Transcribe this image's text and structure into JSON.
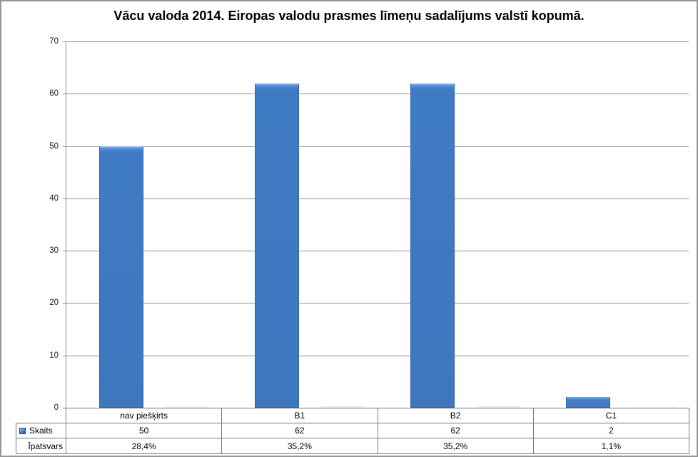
{
  "title": "Vācu valoda 2014. Eiropas valodu prasmes līmeņu sadalījums valstī kopumā.",
  "chart_data": {
    "type": "bar",
    "title": "Vācu valoda 2014. Eiropas valodu prasmes līmeņu sadalījums valstī kopumā.",
    "categories": [
      "nav piešķirts",
      "B1",
      "B2",
      "C1"
    ],
    "series": [
      {
        "name": "Skaits",
        "values": [
          50,
          62,
          62,
          2
        ],
        "color": "#3f7ac4",
        "legend_key": true
      },
      {
        "name": "Īpatsvars",
        "values": [
          0.284,
          0.352,
          0.352,
          0.011
        ],
        "labels": [
          "28,4%",
          "35,2%",
          "35,2%",
          "1,1%"
        ],
        "color": "#eef2f7",
        "legend_key": false
      }
    ],
    "xlabel": "",
    "ylabel": "",
    "ylim": [
      0,
      70
    ],
    "yticks": [
      0,
      10,
      20,
      30,
      40,
      50,
      60,
      70
    ],
    "grid": true,
    "legend_position": "data-table"
  },
  "table": {
    "category_row": [
      "nav piešķirts",
      "B1",
      "B2",
      "C1"
    ],
    "rows": [
      {
        "label": "Skaits",
        "has_key": true,
        "values": [
          "50",
          "62",
          "62",
          "2"
        ]
      },
      {
        "label": "Īpatsvars",
        "has_key": false,
        "values": [
          "28,4%",
          "35,2%",
          "35,2%",
          "1,1%"
        ]
      }
    ]
  }
}
